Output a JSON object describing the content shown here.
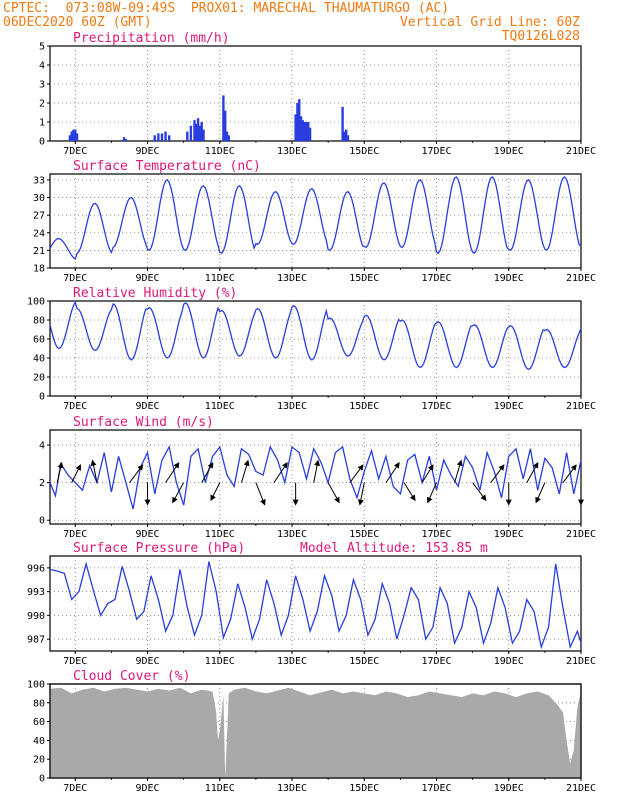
{
  "header": {
    "line1_left": "CPTEC:  073:08W-09:49S  PROX01: MARECHAL THAUMATURGO (AC)",
    "line2_left": "06DEC2020 60Z (GMT)",
    "line2_right": "Vertical Grid Line: 60Z",
    "line3_right": "TQ0126L028",
    "color": "#f07a12"
  },
  "x_ticks": [
    "7DEC",
    "9DEC",
    "11DEC",
    "13DEC",
    "15DEC",
    "17DEC",
    "19DEC",
    "21DEC"
  ],
  "colors": {
    "line": "#2a3ee0",
    "bar": "#2a3ee0",
    "cloud": "#a9a9a9",
    "title": "#e0187a",
    "arrow": "#000000"
  },
  "chart_data": [
    {
      "type": "bar",
      "title": "Precipitation (mm/h)",
      "ylim": [
        0,
        5
      ],
      "yticks": [
        0,
        1,
        2,
        3,
        4,
        5
      ],
      "x_range": [
        6.3,
        21.0
      ],
      "series": [
        {
          "x": [
            6.85,
            6.9,
            6.95,
            7.0,
            7.05,
            8.35,
            8.4,
            9.2,
            9.3,
            9.4,
            9.5,
            9.6,
            10.1,
            10.2,
            10.3,
            10.35,
            10.4,
            10.45,
            10.5,
            10.55,
            11.1,
            11.15,
            11.2,
            11.25,
            13.1,
            13.15,
            13.2,
            13.25,
            13.3,
            13.35,
            13.4,
            13.45,
            13.5,
            14.4,
            14.45,
            14.5,
            14.55
          ],
          "values": [
            0.3,
            0.5,
            0.6,
            0.6,
            0.4,
            0.2,
            0.1,
            0.3,
            0.4,
            0.4,
            0.5,
            0.3,
            0.5,
            0.8,
            1.1,
            0.9,
            1.2,
            0.8,
            1.0,
            0.6,
            2.4,
            1.6,
            0.5,
            0.3,
            1.4,
            2.0,
            2.2,
            1.3,
            1.1,
            1.0,
            1.0,
            1.0,
            0.7,
            1.8,
            0.5,
            0.6,
            0.3
          ]
        }
      ]
    },
    {
      "type": "line",
      "title": "Surface Temperature (nC)",
      "ylim": [
        18,
        34
      ],
      "yticks": [
        18,
        21,
        24,
        27,
        30,
        33
      ],
      "x_range": [
        6.3,
        21.0
      ],
      "phase": 0.54,
      "series": [
        {
          "day_max": [
            23.0,
            29.0,
            30.0,
            33.0,
            32.0,
            32.0,
            31.0,
            31.5,
            31.0,
            32.5,
            33.0,
            33.5,
            33.5,
            33.0,
            33.5,
            33.5
          ],
          "day_min": [
            19.5,
            20.5,
            21.5,
            21.0,
            21.0,
            20.5,
            22.0,
            22.0,
            21.0,
            21.5,
            21.5,
            20.5,
            20.5,
            21.0,
            21.0,
            21.5
          ]
        }
      ]
    },
    {
      "type": "line",
      "title": "Relative Humidity (%)",
      "ylim": [
        0,
        100
      ],
      "yticks": [
        0,
        20,
        40,
        60,
        80,
        100
      ],
      "x_range": [
        6.3,
        21.0
      ],
      "phase": 0.05,
      "series": [
        {
          "day_max": [
            100,
            92,
            97,
            93,
            98,
            90,
            92,
            95,
            82,
            85,
            80,
            78,
            75,
            74,
            70,
            72
          ],
          "day_min": [
            50,
            48,
            38,
            40,
            40,
            42,
            40,
            38,
            42,
            38,
            30,
            30,
            30,
            28,
            30,
            32
          ]
        }
      ]
    },
    {
      "type": "line",
      "title": "Surface Wind (m/s)",
      "ylim": [
        -0.2,
        4.8
      ],
      "yticks": [
        0,
        2,
        4
      ],
      "x_range": [
        6.3,
        21.0
      ],
      "series": [
        {
          "x": [
            6.3,
            6.45,
            6.6,
            6.8,
            7.0,
            7.2,
            7.4,
            7.6,
            7.8,
            8.0,
            8.2,
            8.4,
            8.6,
            8.8,
            9.0,
            9.2,
            9.4,
            9.6,
            9.8,
            10.0,
            10.2,
            10.4,
            10.6,
            10.8,
            11.0,
            11.2,
            11.4,
            11.6,
            11.8,
            12.0,
            12.2,
            12.4,
            12.6,
            12.8,
            13.0,
            13.2,
            13.4,
            13.6,
            13.8,
            14.0,
            14.2,
            14.4,
            14.6,
            14.8,
            15.0,
            15.2,
            15.4,
            15.6,
            15.8,
            16.0,
            16.2,
            16.4,
            16.6,
            16.8,
            17.0,
            17.2,
            17.4,
            17.6,
            17.8,
            18.0,
            18.2,
            18.4,
            18.6,
            18.8,
            19.0,
            19.2,
            19.4,
            19.6,
            19.8,
            20.0,
            20.2,
            20.4,
            20.6,
            20.8,
            21.0
          ],
          "values": [
            2.0,
            1.3,
            3.0,
            2.4,
            2.0,
            1.6,
            2.9,
            2.0,
            3.6,
            1.5,
            3.4,
            2.0,
            0.6,
            2.8,
            3.6,
            1.4,
            3.2,
            3.9,
            2.0,
            0.8,
            3.4,
            3.8,
            2.0,
            3.4,
            3.9,
            2.4,
            1.8,
            3.8,
            3.5,
            2.6,
            2.4,
            3.9,
            3.2,
            2.0,
            3.9,
            3.6,
            2.2,
            3.8,
            3.1,
            2.0,
            3.6,
            3.9,
            2.2,
            1.2,
            2.6,
            3.7,
            2.2,
            3.4,
            1.8,
            1.4,
            3.2,
            3.5,
            2.0,
            3.4,
            1.6,
            3.2,
            2.4,
            1.8,
            3.4,
            2.8,
            1.6,
            3.6,
            2.6,
            1.2,
            3.4,
            3.8,
            2.2,
            3.8,
            1.6,
            3.3,
            2.8,
            1.4,
            3.6,
            1.4,
            3.2
          ]
        }
      ],
      "arrows": [
        {
          "x": 6.5,
          "u": 0.2,
          "v": 0.9
        },
        {
          "x": 6.9,
          "u": 0.4,
          "v": 0.8
        },
        {
          "x": 7.6,
          "u": -0.2,
          "v": 1.0
        },
        {
          "x": 8.5,
          "u": 0.6,
          "v": 0.8
        },
        {
          "x": 9.0,
          "u": 0.0,
          "v": -1.0
        },
        {
          "x": 9.5,
          "u": 0.6,
          "v": 0.9
        },
        {
          "x": 10.0,
          "u": -0.5,
          "v": -0.9
        },
        {
          "x": 10.5,
          "u": 0.5,
          "v": 0.9
        },
        {
          "x": 11.0,
          "u": -0.4,
          "v": -0.8
        },
        {
          "x": 11.6,
          "u": 0.3,
          "v": 1.0
        },
        {
          "x": 12.0,
          "u": 0.4,
          "v": -1.0
        },
        {
          "x": 12.5,
          "u": 0.6,
          "v": 0.9
        },
        {
          "x": 13.1,
          "u": 0.0,
          "v": -1.0
        },
        {
          "x": 13.6,
          "u": 0.2,
          "v": 1.0
        },
        {
          "x": 14.0,
          "u": 0.5,
          "v": -0.9
        },
        {
          "x": 14.6,
          "u": 0.6,
          "v": 0.8
        },
        {
          "x": 15.0,
          "u": -0.2,
          "v": -1.0
        },
        {
          "x": 15.6,
          "u": 0.6,
          "v": 0.9
        },
        {
          "x": 16.1,
          "u": 0.5,
          "v": -0.8
        },
        {
          "x": 16.6,
          "u": 0.5,
          "v": 0.8
        },
        {
          "x": 17.0,
          "u": -0.4,
          "v": -0.9
        },
        {
          "x": 17.5,
          "u": 0.3,
          "v": 1.0
        },
        {
          "x": 18.0,
          "u": 0.6,
          "v": -0.8
        },
        {
          "x": 18.5,
          "u": 0.6,
          "v": 0.8
        },
        {
          "x": 19.0,
          "u": 0.0,
          "v": -1.0
        },
        {
          "x": 19.5,
          "u": 0.5,
          "v": 0.9
        },
        {
          "x": 20.0,
          "u": -0.4,
          "v": -0.9
        },
        {
          "x": 20.5,
          "u": 0.6,
          "v": 0.8
        },
        {
          "x": 21.0,
          "u": 0.0,
          "v": -1.0
        }
      ]
    },
    {
      "type": "line",
      "title": "Surface Pressure (hPa)",
      "subtitle": "Model Altitude: 153.85 m",
      "ylim": [
        985.5,
        997.5
      ],
      "yticks": [
        987,
        990,
        993,
        996
      ],
      "x_range": [
        6.3,
        21.0
      ],
      "series": [
        {
          "x": [
            6.3,
            6.5,
            6.7,
            6.9,
            7.1,
            7.3,
            7.5,
            7.7,
            7.9,
            8.1,
            8.3,
            8.5,
            8.7,
            8.9,
            9.1,
            9.3,
            9.5,
            9.7,
            9.9,
            10.1,
            10.3,
            10.5,
            10.7,
            10.9,
            11.1,
            11.3,
            11.5,
            11.7,
            11.9,
            12.1,
            12.3,
            12.5,
            12.7,
            12.9,
            13.1,
            13.3,
            13.5,
            13.7,
            13.9,
            14.1,
            14.3,
            14.5,
            14.7,
            14.9,
            15.1,
            15.3,
            15.5,
            15.7,
            15.9,
            16.1,
            16.3,
            16.5,
            16.7,
            16.9,
            17.1,
            17.3,
            17.5,
            17.7,
            17.9,
            18.1,
            18.3,
            18.5,
            18.7,
            18.9,
            19.1,
            19.3,
            19.5,
            19.7,
            19.9,
            20.1,
            20.3,
            20.5,
            20.7,
            20.9,
            21.0
          ],
          "values": [
            995.8,
            995.6,
            995.3,
            992.0,
            993.0,
            996.5,
            993.2,
            990.0,
            991.5,
            992.0,
            996.2,
            993.0,
            989.5,
            990.5,
            995.0,
            992.0,
            988.0,
            990.0,
            995.8,
            991.0,
            987.5,
            990.0,
            996.8,
            993.0,
            987.2,
            989.5,
            994.0,
            991.0,
            987.0,
            989.5,
            994.5,
            991.5,
            987.5,
            990.0,
            995.0,
            992.0,
            988.0,
            990.5,
            995.0,
            992.5,
            988.0,
            990.0,
            994.5,
            992.0,
            987.5,
            989.5,
            994.0,
            991.5,
            987.0,
            990.0,
            993.5,
            992.0,
            987.0,
            988.5,
            993.5,
            991.5,
            986.5,
            988.5,
            993.0,
            991.0,
            986.5,
            989.0,
            993.5,
            991.0,
            986.5,
            988.0,
            992.0,
            990.5,
            986.0,
            988.5,
            996.5,
            991.0,
            986.0,
            988.0,
            986.5
          ]
        }
      ]
    },
    {
      "type": "area",
      "title": "Cloud Cover (%)",
      "ylim": [
        0,
        100
      ],
      "yticks": [
        0,
        20,
        40,
        60,
        80,
        100
      ],
      "x_range": [
        6.3,
        21.0
      ],
      "series": [
        {
          "x": [
            6.3,
            6.6,
            6.9,
            7.2,
            7.5,
            7.8,
            8.1,
            8.4,
            8.7,
            9.0,
            9.3,
            9.6,
            9.9,
            10.2,
            10.5,
            10.8,
            10.9,
            10.95,
            11.0,
            11.1,
            11.15,
            11.25,
            11.4,
            11.7,
            12.0,
            12.3,
            12.6,
            12.9,
            13.2,
            13.5,
            13.8,
            14.1,
            14.4,
            14.7,
            15.0,
            15.3,
            15.6,
            15.9,
            16.2,
            16.5,
            16.8,
            17.1,
            17.4,
            17.7,
            18.0,
            18.3,
            18.6,
            18.9,
            19.2,
            19.5,
            19.8,
            20.1,
            20.3,
            20.5,
            20.6,
            20.7,
            20.8,
            20.9,
            21.0
          ],
          "values": [
            95,
            96,
            90,
            94,
            96,
            92,
            95,
            96,
            94,
            92,
            95,
            93,
            96,
            90,
            94,
            92,
            70,
            40,
            50,
            88,
            0,
            90,
            94,
            96,
            92,
            90,
            93,
            96,
            92,
            88,
            91,
            94,
            90,
            92,
            90,
            88,
            92,
            90,
            86,
            88,
            92,
            90,
            88,
            86,
            90,
            88,
            92,
            90,
            86,
            90,
            92,
            88,
            80,
            70,
            40,
            15,
            30,
            75,
            92
          ]
        }
      ]
    }
  ]
}
